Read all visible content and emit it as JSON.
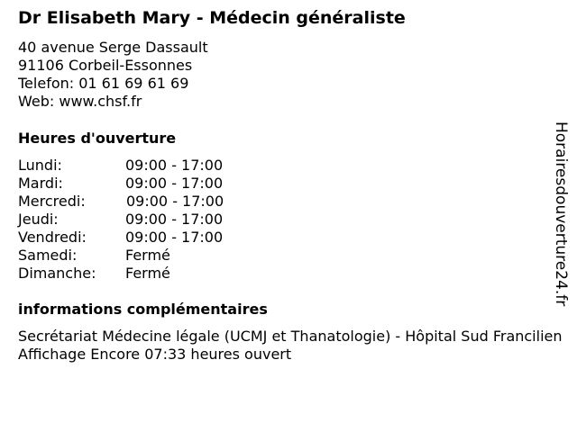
{
  "header": {
    "title": "Dr Elisabeth Mary - Médecin généraliste"
  },
  "contact": {
    "street": "40 avenue Serge Dassault",
    "city": "91106 Corbeil-Essonnes",
    "phone": "Telefon: 01 61 69 61 69",
    "web": "Web: www.chsf.fr"
  },
  "hours": {
    "heading": "Heures d'ouverture",
    "days": [
      {
        "day": "Lundi:",
        "time": "09:00 - 17:00"
      },
      {
        "day": "Mardi:",
        "time": "09:00 - 17:00"
      },
      {
        "day": "Mercredi:",
        "time": "09:00 - 17:00"
      },
      {
        "day": "Jeudi:",
        "time": "09:00 - 17:00"
      },
      {
        "day": "Vendredi:",
        "time": "09:00 - 17:00"
      },
      {
        "day": "Samedi:",
        "time": "Fermé"
      },
      {
        "day": "Dimanche:",
        "time": "Fermé"
      }
    ]
  },
  "info": {
    "heading": "informations complémentaires",
    "text": "Secrétariat Médecine légale (UCMJ et Thanatologie) - Hôpital Sud Francilien Affichage Encore 07:33 heures ouvert"
  },
  "watermark": "Horairesdouverture24.fr"
}
